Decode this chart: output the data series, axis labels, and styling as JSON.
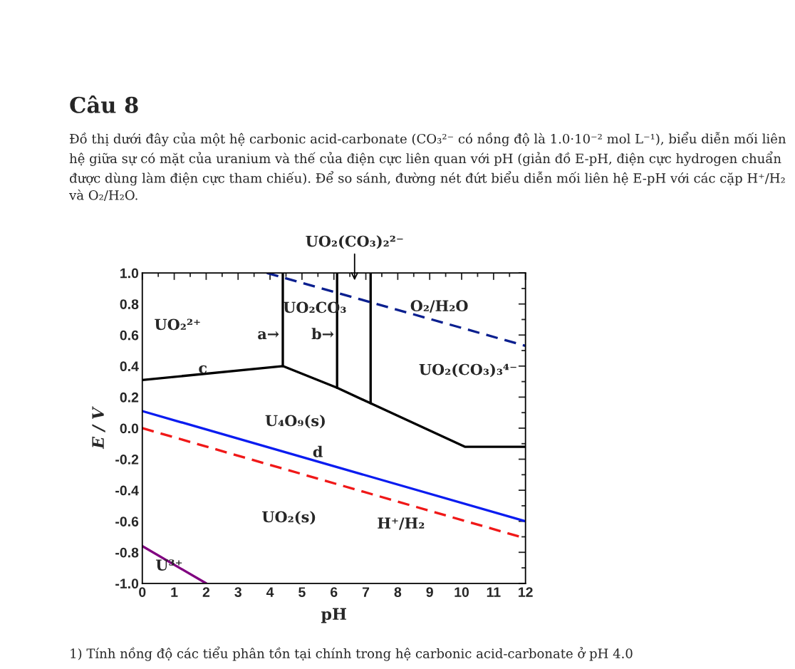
{
  "chart_data": {
    "type": "line",
    "title": "Câu 8",
    "subtitle": "Đồ thị dưới đây của một hệ carbonic acid-carbonate (CO₃²⁻ có nồng độ là 1.0·10⁻² mol L⁻¹), biểu diễn mối liên hệ giữa sự có mặt của uranium và thế của điện cực liên quan với pH (giản đồ E-pH, điện cực hydrogen chuẩn được dùng làm điện cực tham chiếu). Để so sánh, đường nét đứt biểu diễn mối liên hệ E-pH với các cặp H⁺/H₂ và O₂/H₂O.",
    "xlabel": "pH",
    "ylabel": "E / V",
    "xlim": [
      0,
      12
    ],
    "xticks": [
      0,
      1,
      2,
      3,
      4,
      5,
      6,
      7,
      8,
      9,
      10,
      11,
      12
    ],
    "ylim": [
      -1.0,
      1.0
    ],
    "yticks": [
      {
        "value": -1.0,
        "label": "-1.0"
      },
      {
        "value": -0.8,
        "label": "-0.8"
      },
      {
        "value": -0.6,
        "label": "-0.6"
      },
      {
        "value": -0.4,
        "label": "-0.4"
      },
      {
        "value": -0.2,
        "label": "-0.2"
      },
      {
        "value": 0.0,
        "label": "0.0"
      },
      {
        "value": 0.2,
        "label": "0.2"
      },
      {
        "value": 0.4,
        "label": "0.4"
      },
      {
        "value": 0.6,
        "label": "0.6"
      },
      {
        "value": 0.8,
        "label": "0.8"
      },
      {
        "value": 1.0,
        "label": "1.0"
      }
    ],
    "grid": false,
    "legend": false,
    "marker": "none",
    "series": [
      {
        "color": "#000000",
        "line_style": "solid",
        "x": [
          0,
          4.4,
          6.1,
          7.15,
          10.1,
          12
        ],
        "values": [
          0.31,
          0.4,
          0.26,
          0.16,
          -0.12,
          -0.12
        ]
      },
      {
        "color": "#000000",
        "line_style": "solid",
        "x": [
          4.4,
          4.4
        ],
        "values": [
          0.4,
          1.0
        ]
      },
      {
        "color": "#000000",
        "line_style": "solid",
        "x": [
          6.1,
          6.1
        ],
        "values": [
          0.26,
          1.0
        ]
      },
      {
        "color": "#000000",
        "line_style": "solid",
        "x": [
          7.15,
          7.15
        ],
        "values": [
          0.16,
          1.0
        ]
      },
      {
        "color": "#0a1f8f",
        "line_style": "dashed",
        "x": [
          3.9,
          12
        ],
        "values": [
          1.0,
          0.53
        ]
      },
      {
        "color": "#0a1cf0",
        "line_style": "solid",
        "x": [
          0,
          12
        ],
        "values": [
          0.11,
          -0.6
        ]
      },
      {
        "color": "#f01818",
        "line_style": "dashed",
        "x": [
          0,
          12
        ],
        "values": [
          0.0,
          -0.71
        ]
      },
      {
        "color": "#800080",
        "line_style": "solid",
        "x": [
          0,
          2
        ],
        "values": [
          -0.76,
          -1.0
        ]
      }
    ],
    "annotations": [
      "UO₂²⁺",
      "UO₂CO₃",
      "UO₂(CO₃)₂²⁻",
      "O₂/H₂O",
      "UO₂(CO₃)₃⁴⁻",
      "a→",
      "b→",
      "c",
      "U₄O₉(s)",
      "d",
      "UO₂(s)",
      "H⁺/H₂",
      "U³⁺",
      "1) Tính nồng độ các tiểu phân tồn tại chính trong hệ carbonic acid-carbonate ở pH 4.0"
    ]
  }
}
